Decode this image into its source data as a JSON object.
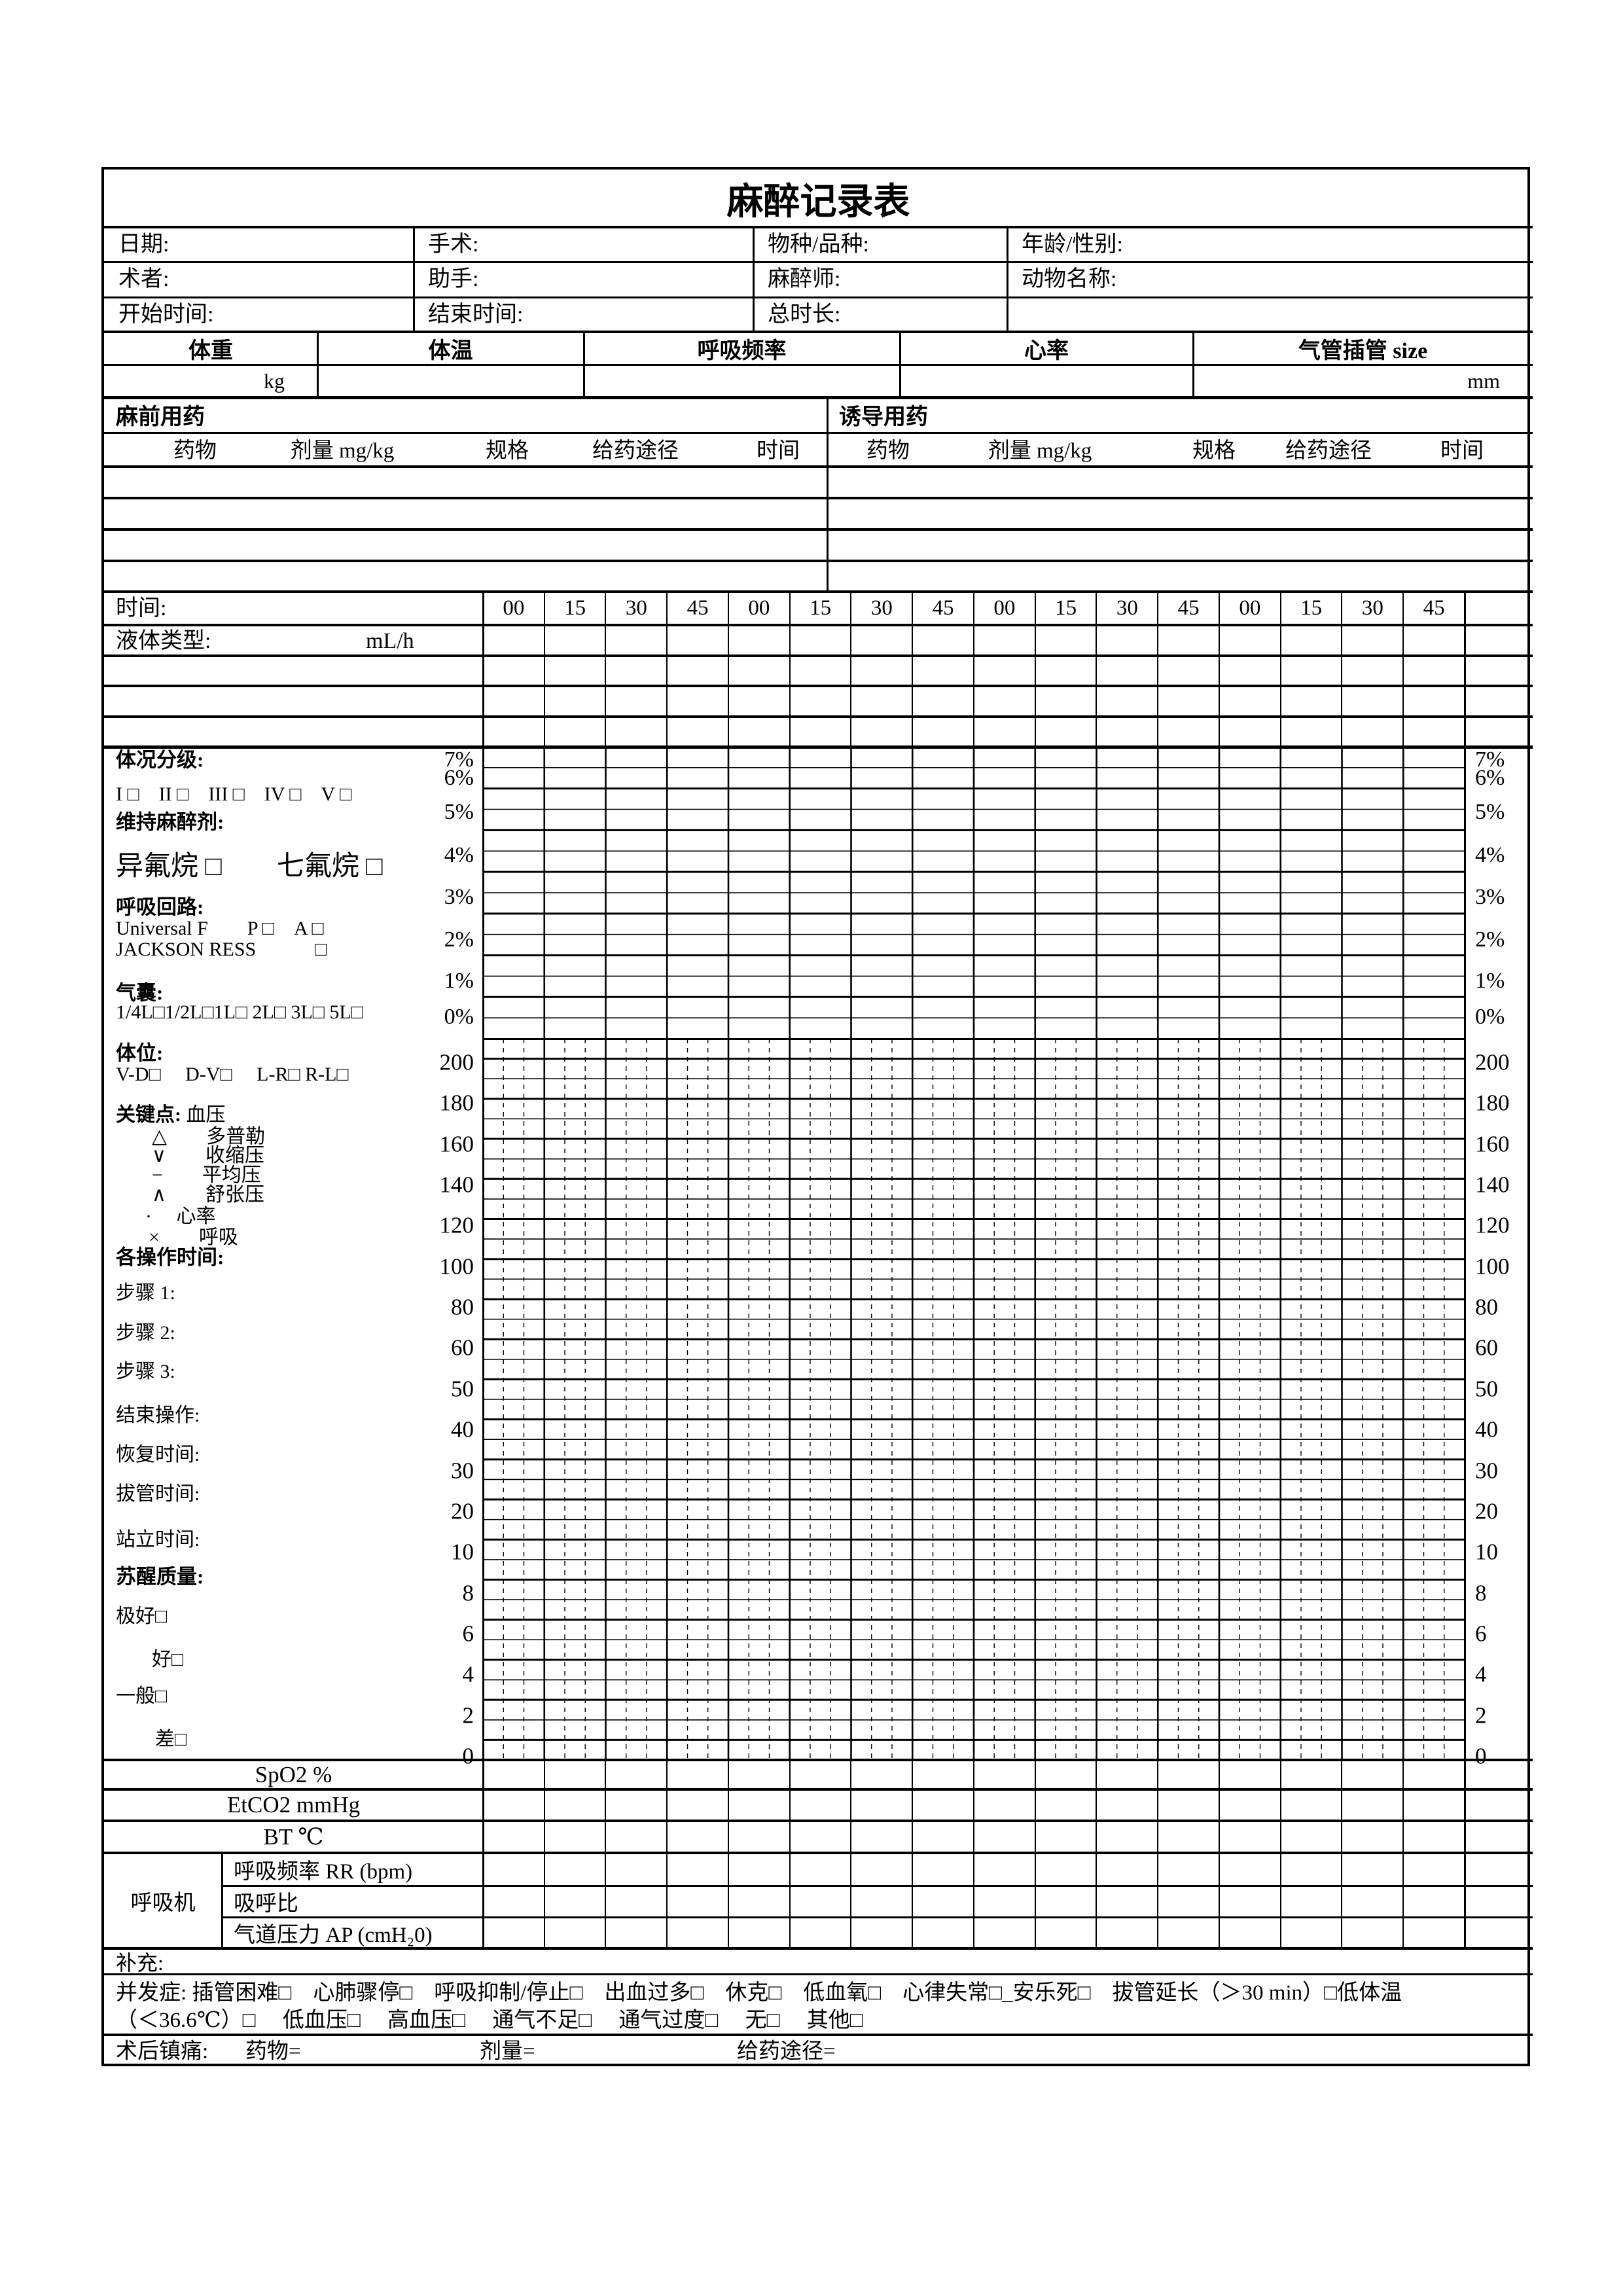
{
  "title": "麻醉记录表",
  "info": {
    "row1": [
      "日期:",
      "手术:",
      "物种/品种:",
      "年龄/性别:"
    ],
    "row2": [
      "术者:",
      "助手:",
      "麻醉师:",
      "动物名称:"
    ],
    "row3": [
      "开始时间:",
      "结束时间:",
      "总时长:"
    ]
  },
  "vitals_header": {
    "labels": [
      "体重",
      "体温",
      "呼吸频率",
      "心率",
      "气管插管 size"
    ],
    "weight_unit": "kg",
    "tube_unit": "mm"
  },
  "med_sections": {
    "pre_label": "麻前用药",
    "induction_label": "诱导用药",
    "columns": [
      "药物",
      "剂量 mg/kg",
      "规格",
      "给药途径",
      "时间"
    ]
  },
  "time_row": {
    "label": "时间:",
    "slots": [
      "00",
      "15",
      "30",
      "45",
      "00",
      "15",
      "30",
      "45",
      "00",
      "15",
      "30",
      "45",
      "00",
      "15",
      "30",
      "45"
    ]
  },
  "fluid_row": {
    "label": "液体类型:",
    "unit": "mL/h"
  },
  "chart": {
    "percent_scale": [
      "7%",
      "6%",
      "5%",
      "4%",
      "3%",
      "2%",
      "1%",
      "0%"
    ],
    "vitals_scale": [
      "200",
      "180",
      "160",
      "140",
      "120",
      "100",
      "80",
      "60",
      "50",
      "40",
      "30",
      "20",
      "10",
      "8",
      "6",
      "4",
      "2",
      "0"
    ]
  },
  "left_panel": {
    "lines": [
      {
        "t": "体况分级:",
        "b": true
      },
      {
        "t": "I □　II □　III □　IV □　V □",
        "cb": true
      },
      {
        "t": "维持麻醉剂:",
        "b": true
      },
      {
        "t": "异氟烷 □　　七氟烷 □",
        "big": true,
        "cb": true
      },
      {
        "t": "呼吸回路:",
        "b": true
      },
      {
        "t": "Universal F　　P □　A □",
        "cb": true
      },
      {
        "t": "JACKSON RESS　　　□",
        "cb": true
      },
      {
        "t": "气囊:",
        "b": true
      },
      {
        "t": "1/4L□1/2L□1L□ 2L□ 3L□ 5L□",
        "cb": true
      },
      {
        "t": "体位:",
        "b": true
      },
      {
        "t": "V-D□　 D-V□　 L-R□ R-L□",
        "cb": true
      },
      {
        "pre": "关键点:",
        "rest": " 血压"
      },
      {
        "t": "△　　多普勒",
        "ind": 55
      },
      {
        "t": "∨　　收缩压",
        "ind": 55
      },
      {
        "t": "−　　平均压",
        "ind": 55
      },
      {
        "t": "∧　　舒张压",
        "ind": 55
      },
      {
        "t": "·　 心率",
        "ind": 45
      },
      {
        "t": "×　　呼吸",
        "ind": 50
      },
      {
        "t": "各操作时间:",
        "b": true
      },
      {
        "t": "步骤 1:"
      },
      {
        "t": "步骤 2:"
      },
      {
        "t": "步骤 3:"
      },
      {
        "t": "结束操作:"
      },
      {
        "t": "恢复时间:"
      },
      {
        "t": "拔管时间:"
      },
      {
        "t": "站立时间:"
      },
      {
        "t": "苏醒质量:",
        "b": true
      },
      {
        "t": "极好□",
        "cb": true
      },
      {
        "t": "好□",
        "ind": 55,
        "cb": true
      },
      {
        "t": "一般□",
        "cb": true
      },
      {
        "t": "差□",
        "ind": 60,
        "cb": true
      }
    ]
  },
  "monitor_rows": {
    "spo2": "SpO2 %",
    "etco2": "EtCO2 mmHg",
    "bt": "BT ℃",
    "ventilator": "呼吸机",
    "rr": "呼吸频率 RR (bpm)",
    "ie": "吸呼比",
    "ap": "气道压力 AP (cmH₂0)"
  },
  "supplement_label": "补充:",
  "complications": {
    "lines": [
      "并发症: 插管困难□　心肺骤停□　呼吸抑制/停止□　出血过多□　休克□　低血氧□　心律失常□_安乐死□　拔管延长（＞30 min）□低体温",
      "（＜36.6℃）□　 低血压□　 高血压□　 通气不足□　 通气过度□　 无□　 其他□"
    ]
  },
  "postop": {
    "label": "术后镇痛:",
    "drug": "药物=",
    "dose": "剂量=",
    "route": "给药途径="
  }
}
